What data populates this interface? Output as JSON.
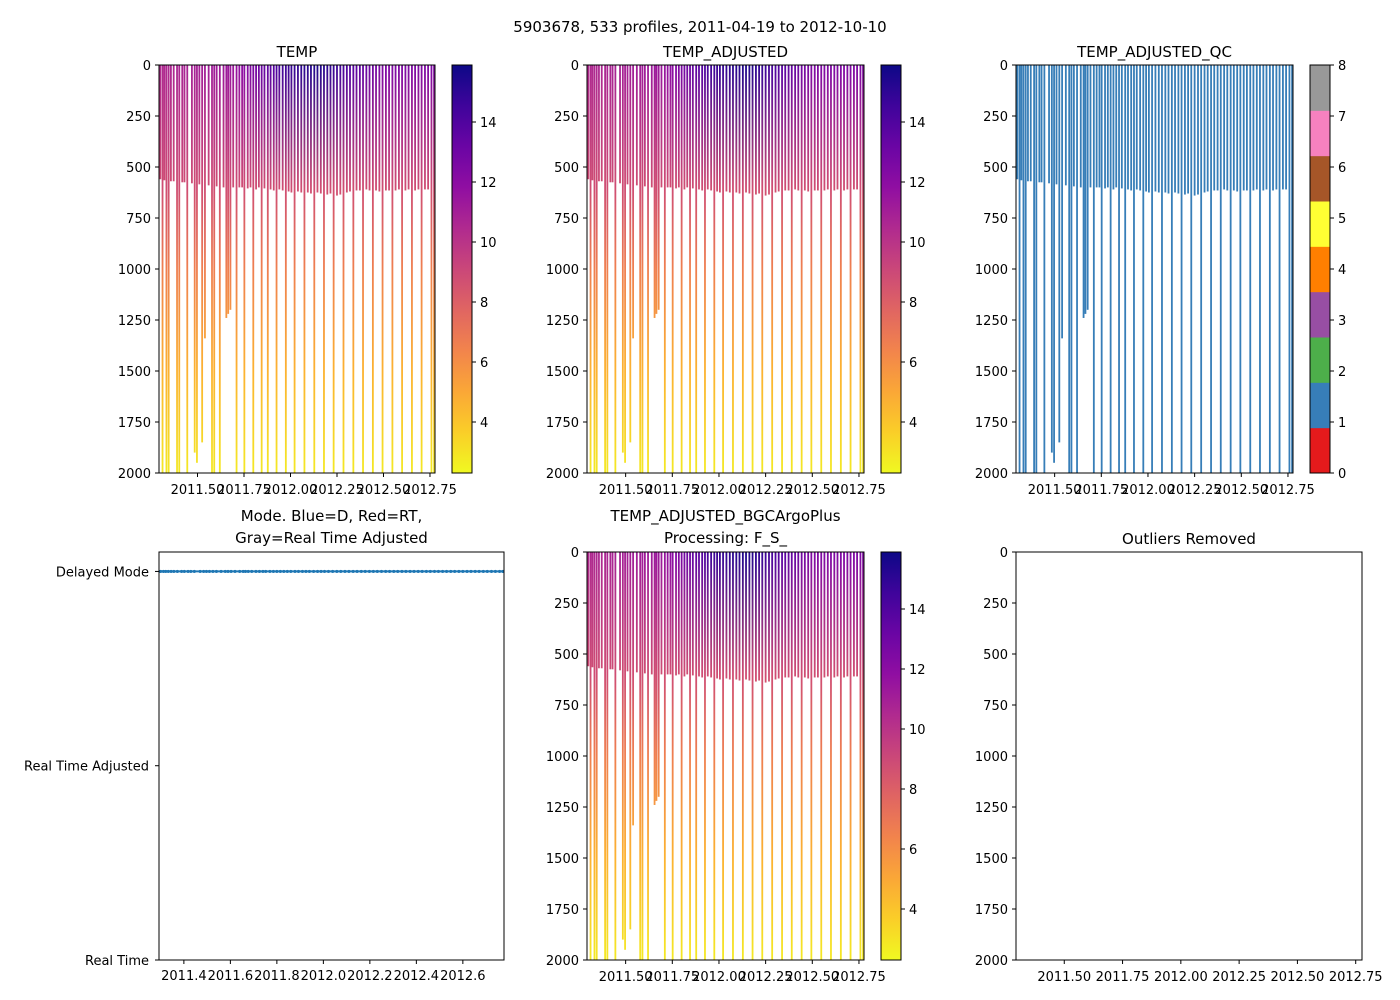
{
  "suptitle": "5903678, 533 profiles, 2011-04-19 to 2012-10-10",
  "chart_data": {
    "type": "multi-panel profile section",
    "xlim": [
      2011.293,
      2012.777
    ],
    "pressure_ylim": [
      2000,
      0
    ],
    "profiles": {
      "time": [
        2011.3,
        2011.312,
        2011.322,
        2011.333,
        2011.345,
        2011.357,
        2011.372,
        2011.39,
        2011.402,
        2011.418,
        2011.43,
        2011.445,
        2011.47,
        2011.485,
        2011.497,
        2011.51,
        2011.525,
        2011.54,
        2011.56,
        2011.578,
        2011.59,
        2011.603,
        2011.62,
        2011.64,
        2011.655,
        2011.665,
        2011.677,
        2011.692,
        2011.71,
        2011.725,
        2011.74,
        2011.752,
        2011.77,
        2011.785,
        2011.8,
        2011.815,
        2011.83,
        2011.845,
        2011.86,
        2011.878,
        2011.893,
        2011.91,
        2011.925,
        2011.94,
        2011.958,
        2011.975,
        2011.99,
        2012.005,
        2012.022,
        2012.04,
        2012.058,
        2012.075,
        2012.093,
        2012.11,
        2012.128,
        2012.145,
        2012.163,
        2012.18,
        2012.198,
        2012.215,
        2012.232,
        2012.25,
        2012.268,
        2012.285,
        2012.303,
        2012.32,
        2012.338,
        2012.355,
        2012.373,
        2012.39,
        2012.408,
        2012.425,
        2012.443,
        2012.46,
        2012.478,
        2012.495,
        2012.513,
        2012.53,
        2012.548,
        2012.565,
        2012.583,
        2012.6,
        2012.618,
        2012.635,
        2012.653,
        2012.67,
        2012.688,
        2012.705,
        2012.723,
        2012.74,
        2012.758,
        2012.772
      ],
      "max_pressure": [
        560,
        2000,
        565,
        2000,
        2000,
        570,
        570,
        2000,
        2000,
        575,
        575,
        2000,
        580,
        1900,
        1950,
        585,
        1850,
        1340,
        590,
        2000,
        2000,
        595,
        2000,
        600,
        1240,
        1220,
        1200,
        600,
        2000,
        600,
        600,
        2000,
        605,
        600,
        2000,
        610,
        600,
        2000,
        605,
        2000,
        610,
        615,
        2000,
        610,
        615,
        2000,
        620,
        625,
        2000,
        620,
        625,
        2000,
        625,
        630,
        2000,
        625,
        630,
        2000,
        635,
        630,
        2000,
        640,
        635,
        2000,
        625,
        620,
        2000,
        615,
        615,
        2000,
        610,
        615,
        2000,
        615,
        620,
        2000,
        615,
        615,
        2000,
        615,
        610,
        2000,
        615,
        610,
        2000,
        615,
        610,
        2000,
        610,
        610,
        2000,
        2000
      ],
      "surface_temp_knots": {
        "time": [
          2011.29,
          2011.7,
          2011.95,
          2012.15,
          2012.5,
          2012.78
        ],
        "temp": [
          10.5,
          11.5,
          14.5,
          15.5,
          12.5,
          12.5
        ]
      },
      "temp_at_depth": {
        "pressure": [
          600,
          1000,
          1500,
          2000
        ],
        "temp": [
          8.8,
          6.6,
          4.6,
          2.8
        ]
      },
      "qc_value": 1,
      "mode": "D"
    },
    "panels": [
      {
        "title": "TEMP",
        "kind": "temp",
        "colorbar": {
          "range": [
            2.3,
            15.9
          ],
          "ticks": [
            "4",
            "6",
            "8",
            "10",
            "12",
            "14"
          ],
          "cmap": "plasma_r"
        }
      },
      {
        "title": "TEMP_ADJUSTED",
        "kind": "temp",
        "colorbar": {
          "range": [
            2.3,
            15.9
          ],
          "ticks": [
            "4",
            "6",
            "8",
            "10",
            "12",
            "14"
          ],
          "cmap": "plasma_r"
        }
      },
      {
        "title": "TEMP_ADJUSTED_QC",
        "kind": "qc",
        "colorbar": {
          "range": [
            0,
            8
          ],
          "ticks": [
            "0",
            "1",
            "2",
            "3",
            "4",
            "5",
            "6",
            "7",
            "8"
          ],
          "colors": [
            "#e41a1c",
            "#377eb8",
            "#4daf4a",
            "#984ea3",
            "#ff7f00",
            "#ffff33",
            "#a65628",
            "#f781bf",
            "#999999"
          ]
        }
      },
      {
        "title": "Mode. Blue=D, Red=RT,",
        "title2": "Gray=Real Time Adjusted",
        "kind": "mode",
        "ylim": [
          0,
          2.1
        ],
        "yticks": [
          {
            "value": 2,
            "label": "Delayed Mode"
          },
          {
            "value": 1,
            "label": "Real Time Adjusted"
          },
          {
            "value": 0,
            "label": "Real Time"
          }
        ],
        "xticks": [
          "2011.4",
          "2011.6",
          "2011.8",
          "2012.0",
          "2012.2",
          "2012.4",
          "2012.6"
        ],
        "xtick_values": [
          2011.4,
          2011.6,
          2011.8,
          2012.0,
          2012.2,
          2012.4,
          2012.6
        ],
        "point_color": "#1f77b4"
      },
      {
        "title": "TEMP_ADJUSTED_BGCArgoPlus",
        "title2": "Processing: F_S_",
        "kind": "temp",
        "colorbar": {
          "range": [
            2.3,
            15.9
          ],
          "ticks": [
            "4",
            "6",
            "8",
            "10",
            "12",
            "14"
          ],
          "cmap": "plasma_r"
        }
      },
      {
        "title": "Outliers Removed",
        "kind": "empty"
      }
    ],
    "xticks": [
      "2011.50",
      "2011.75",
      "2012.00",
      "2012.25",
      "2012.50",
      "2012.75"
    ],
    "xtick_values": [
      2011.5,
      2011.75,
      2012.0,
      2012.25,
      2012.5,
      2012.75
    ],
    "yticks": [
      "0",
      "250",
      "500",
      "750",
      "1000",
      "1250",
      "1500",
      "1750",
      "2000"
    ],
    "ytick_values": [
      0,
      250,
      500,
      750,
      1000,
      1250,
      1500,
      1750,
      2000
    ]
  }
}
